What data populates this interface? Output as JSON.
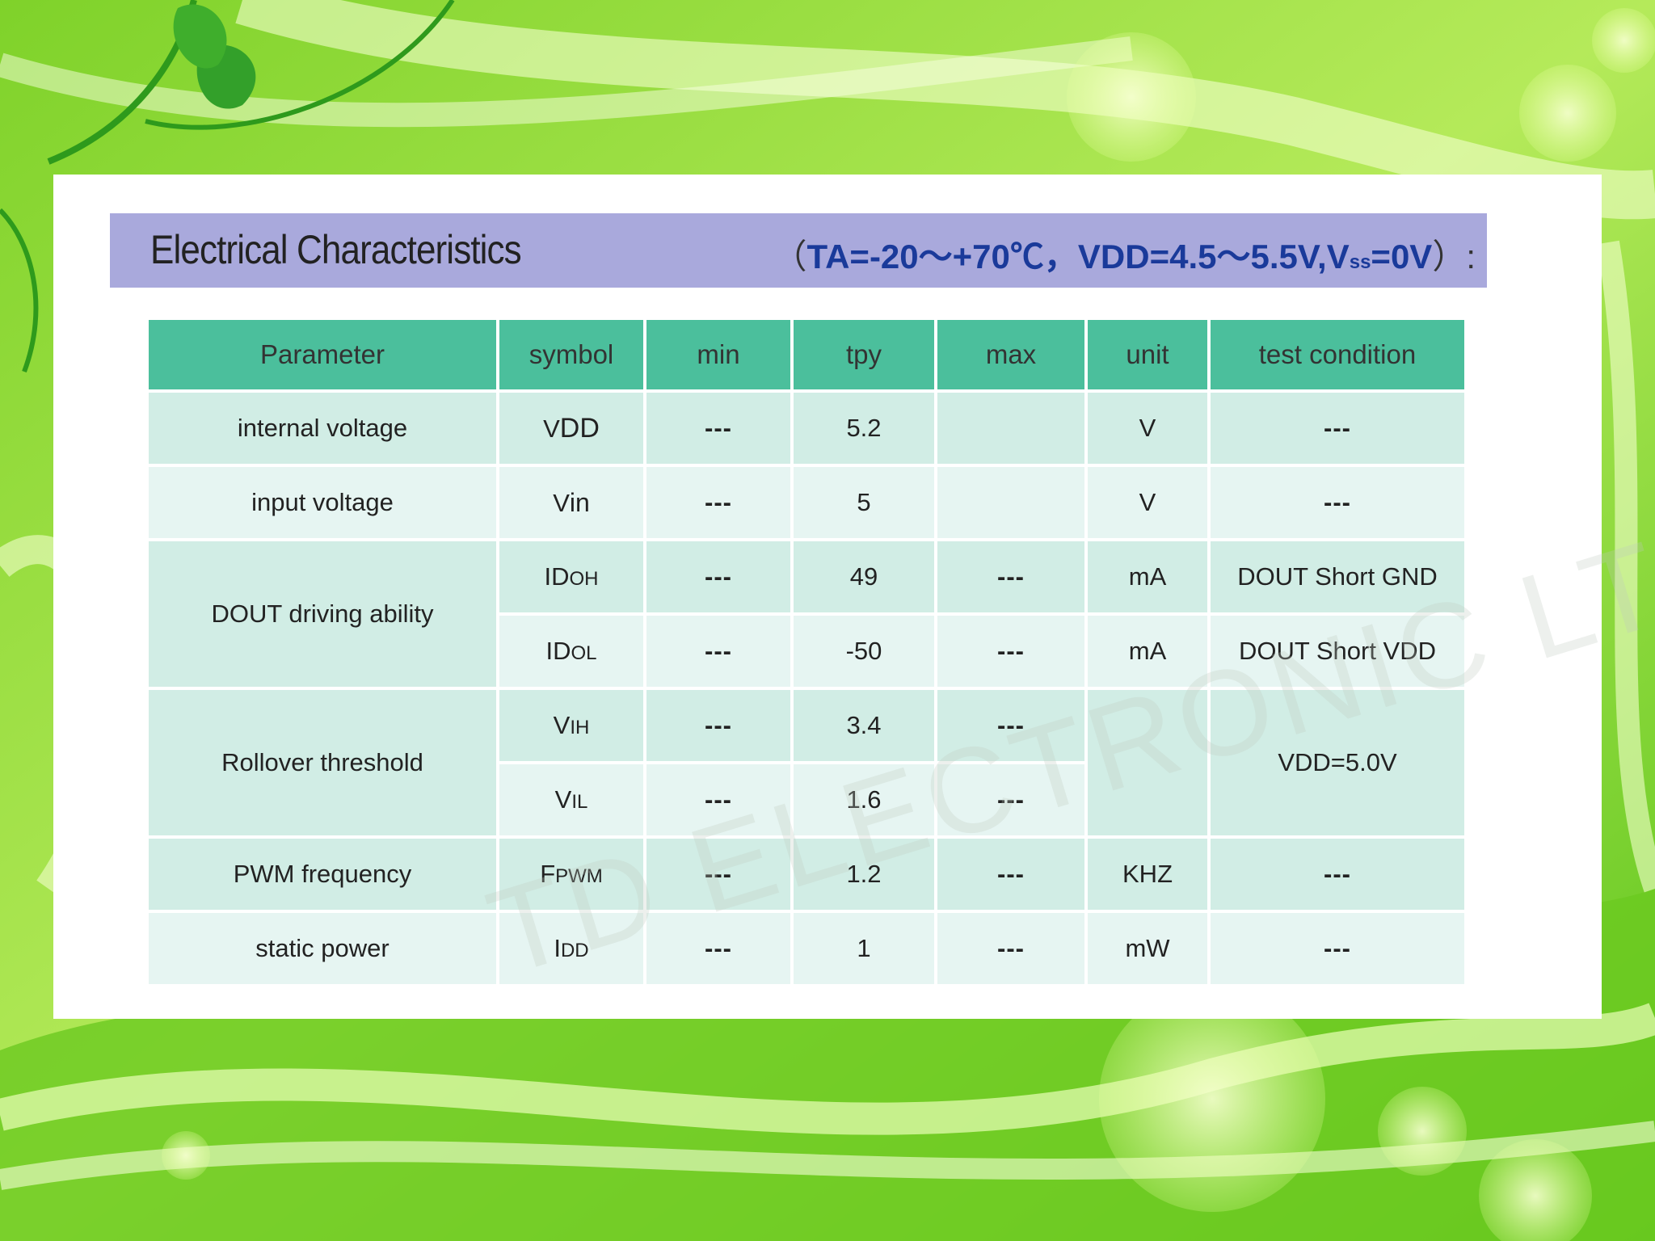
{
  "title": "Electrical Characteristics",
  "conditions": {
    "open": "（",
    "text": "TA=-20～+70℃，VDD=4.5～5.5V,V",
    "sub": "ss",
    "tail": "=0V",
    "close": "）:"
  },
  "table": {
    "headers": [
      "Parameter",
      "symbol",
      "min",
      "tpy",
      "max",
      "unit",
      "test condition"
    ],
    "rows": {
      "internal": {
        "param": "internal voltage",
        "sym": "V",
        "sym_sub": "DD",
        "min": "---",
        "tpy": "5.2",
        "max": "",
        "unit": "V",
        "cond": "---"
      },
      "input": {
        "param": "input voltage",
        "sym": "V",
        "sym_sub": "in",
        "min": "---",
        "tpy": "5",
        "max": "",
        "unit": "V",
        "cond": "---"
      },
      "doh": {
        "param": "DOUT driving ability",
        "sym": "ID",
        "sym_sub": "OH",
        "min": "---",
        "tpy": "49",
        "max": "---",
        "unit": "mA",
        "cond": "DOUT Short GND"
      },
      "dol": {
        "sym": "ID",
        "sym_sub": "OL",
        "min": "---",
        "tpy": "-50",
        "max": "---",
        "unit": "mA",
        "cond": "DOUT Short VDD"
      },
      "vih": {
        "param": "Rollover threshold",
        "sym": "V",
        "sym_sub": "IH",
        "min": "---",
        "tpy": "3.4",
        "max": "---",
        "unit": "",
        "cond": "VDD=5.0V"
      },
      "vil": {
        "sym": "V",
        "sym_sub": "IL",
        "min": "---",
        "tpy": "1.6",
        "max": "---"
      },
      "pwm": {
        "param": "PWM frequency",
        "sym": "F",
        "sym_sub": "PWM",
        "min": "---",
        "tpy": "1.2",
        "max": "---",
        "unit": "KHZ",
        "cond": "---"
      },
      "static": {
        "param": "static power",
        "sym": "I",
        "sym_sub": "DD",
        "min": "---",
        "tpy": "1",
        "max": "---",
        "unit": "mW",
        "cond": "---"
      }
    }
  },
  "watermark": "TD ELECTRONIC LTD",
  "colors": {
    "title_bar": "#a9a9dc",
    "header": "#4bbf9c",
    "row_light": "#e6f5f2",
    "row_dark": "#d1ede5",
    "condition_text": "#1a3a9a"
  }
}
